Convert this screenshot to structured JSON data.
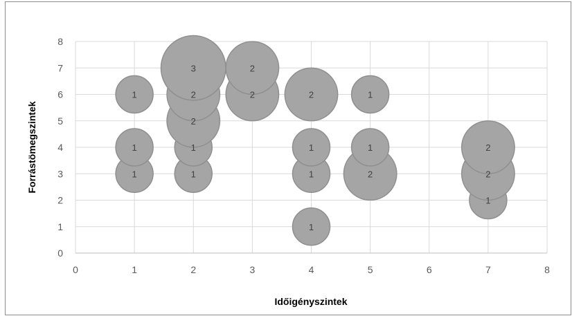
{
  "chart_data": {
    "type": "scatter",
    "subtype": "bubble",
    "title": "",
    "xlabel": "Időigényszintek",
    "ylabel": "Forrástömegszintek",
    "xlim": [
      0,
      8
    ],
    "ylim": [
      0,
      8
    ],
    "xticks": [
      "0",
      "1",
      "2",
      "3",
      "4",
      "5",
      "6",
      "7",
      "8"
    ],
    "yticks": [
      "0",
      "1",
      "2",
      "3",
      "4",
      "5",
      "6",
      "7",
      "8"
    ],
    "grid": true,
    "legend": "none",
    "bubble_color": "#a5a5a5",
    "bubble_border": "#8f8f8f",
    "points": [
      {
        "x": 1,
        "y": 3,
        "size": 1
      },
      {
        "x": 1,
        "y": 4,
        "size": 1
      },
      {
        "x": 1,
        "y": 6,
        "size": 1
      },
      {
        "x": 2,
        "y": 3,
        "size": 1
      },
      {
        "x": 2,
        "y": 4,
        "size": 1
      },
      {
        "x": 2,
        "y": 5,
        "size": 2
      },
      {
        "x": 2,
        "y": 6,
        "size": 2
      },
      {
        "x": 2,
        "y": 7,
        "size": 3
      },
      {
        "x": 3,
        "y": 6,
        "size": 2
      },
      {
        "x": 3,
        "y": 7,
        "size": 2
      },
      {
        "x": 4,
        "y": 1,
        "size": 1
      },
      {
        "x": 4,
        "y": 3,
        "size": 1
      },
      {
        "x": 4,
        "y": 4,
        "size": 1
      },
      {
        "x": 4,
        "y": 6,
        "size": 2
      },
      {
        "x": 5,
        "y": 3,
        "size": 2
      },
      {
        "x": 5,
        "y": 4,
        "size": 1
      },
      {
        "x": 5,
        "y": 6,
        "size": 1
      },
      {
        "x": 7,
        "y": 2,
        "size": 1
      },
      {
        "x": 7,
        "y": 3,
        "size": 2
      },
      {
        "x": 7,
        "y": 4,
        "size": 2
      }
    ]
  }
}
